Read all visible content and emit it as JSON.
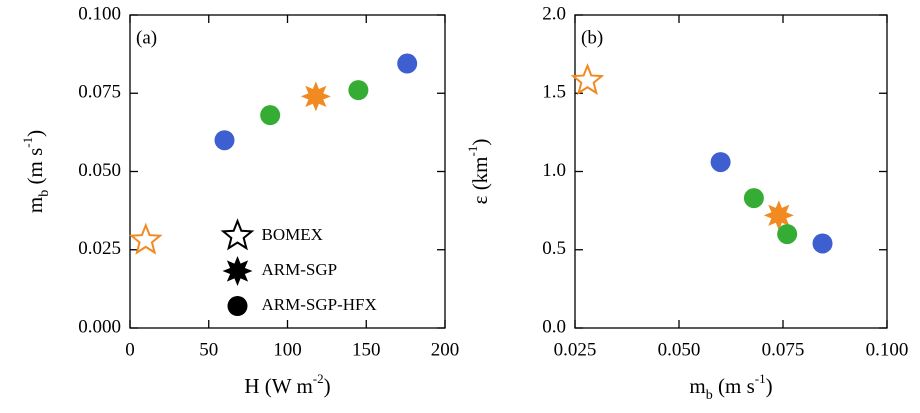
{
  "chart_data": [
    {
      "type": "scatter",
      "annotation": "(a)",
      "xlabel": [
        {
          "text": "H (W m"
        },
        {
          "text": "-2",
          "shift": "super"
        },
        {
          "text": ")"
        }
      ],
      "ylabel": [
        {
          "text": "m"
        },
        {
          "text": "b",
          "shift": "sub"
        },
        {
          "text": " (m s"
        },
        {
          "text": "-1",
          "shift": "super"
        },
        {
          "text": ")"
        }
      ],
      "xlim": [
        0,
        200
      ],
      "xticks": [
        0,
        50,
        100,
        150,
        200
      ],
      "ylim": [
        0,
        0.1
      ],
      "yticks": [
        {
          "value": 0,
          "label": "0.000"
        },
        {
          "value": 0.025,
          "label": "0.025"
        },
        {
          "value": 0.05,
          "label": "0.050"
        },
        {
          "value": 0.075,
          "label": "0.075"
        },
        {
          "value": 0.1,
          "label": "0.100"
        }
      ],
      "legend": "lower center",
      "legend_color": "#000000",
      "series": [
        {
          "name": "BOMEX",
          "marker": "open-star",
          "color": "#f28a22",
          "x": [
            10
          ],
          "values": [
            0.028
          ]
        },
        {
          "name": "ARM-SGP",
          "marker": "star",
          "color": "#f28a22",
          "x": [
            118
          ],
          "values": [
            0.074
          ]
        },
        {
          "name": "ARM-SGP-HFX",
          "marker": "circle",
          "colors": [
            "#3d5fcf",
            "#35ad35",
            "#35ad35",
            "#3d5fcf"
          ],
          "x": [
            60,
            89,
            145,
            176
          ],
          "values": [
            0.06,
            0.068,
            0.076,
            0.0845
          ]
        }
      ]
    },
    {
      "type": "scatter",
      "annotation": "(b)",
      "xlabel": [
        {
          "text": "m"
        },
        {
          "text": "b",
          "shift": "sub"
        },
        {
          "text": " (m s"
        },
        {
          "text": "-1",
          "shift": "super"
        },
        {
          "text": ")"
        }
      ],
      "ylabel": [
        {
          "text": "ε (km"
        },
        {
          "text": "-1",
          "shift": "super"
        },
        {
          "text": ")"
        }
      ],
      "xlim": [
        0.025,
        0.1
      ],
      "xticks": [
        {
          "value": 0.025,
          "label": "0.025"
        },
        {
          "value": 0.05,
          "label": "0.050"
        },
        {
          "value": 0.075,
          "label": "0.075"
        },
        {
          "value": 0.1,
          "label": "0.100"
        }
      ],
      "ylim": [
        0,
        2
      ],
      "yticks": [
        {
          "value": 0,
          "label": "0.0"
        },
        {
          "value": 0.5,
          "label": "0.5"
        },
        {
          "value": 1,
          "label": "1.0"
        },
        {
          "value": 1.5,
          "label": "1.5"
        },
        {
          "value": 2,
          "label": "2.0"
        }
      ],
      "series": [
        {
          "name": "BOMEX",
          "marker": "open-star",
          "color": "#f28a22",
          "x": [
            0.028
          ],
          "values": [
            1.58
          ]
        },
        {
          "name": "ARM-SGP",
          "marker": "star",
          "color": "#f28a22",
          "x": [
            0.074
          ],
          "values": [
            0.72
          ]
        },
        {
          "name": "ARM-SGP-HFX",
          "marker": "circle",
          "colors": [
            "#3d5fcf",
            "#35ad35",
            "#35ad35",
            "#3d5fcf"
          ],
          "x": [
            0.06,
            0.068,
            0.076,
            0.0845
          ],
          "values": [
            1.06,
            0.83,
            0.6,
            0.54
          ]
        }
      ]
    }
  ]
}
